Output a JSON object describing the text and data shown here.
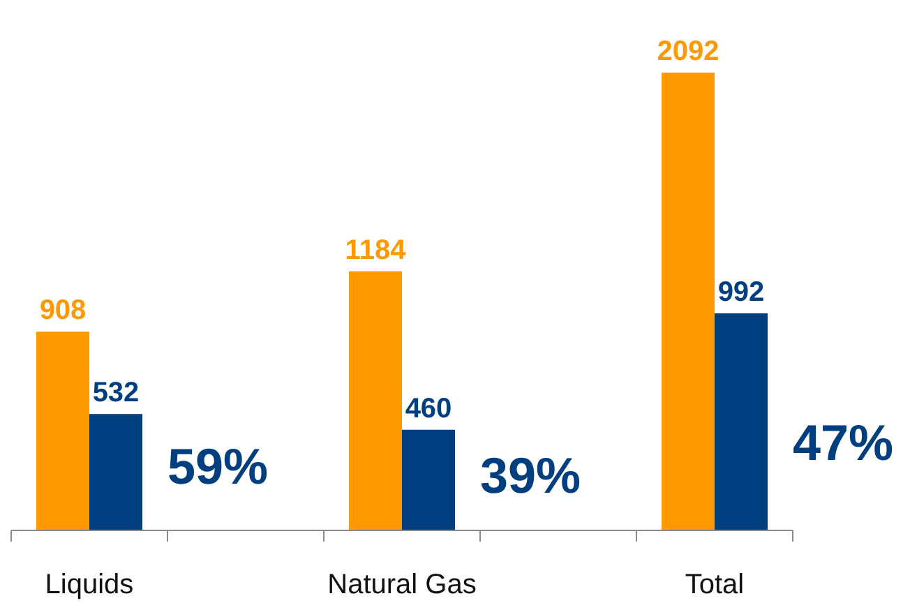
{
  "chart_data": {
    "type": "bar",
    "categories": [
      "Liquids",
      "Natural Gas",
      "Total"
    ],
    "series": [
      {
        "color": "#ff9900",
        "values": [
          908,
          1184,
          2092
        ]
      },
      {
        "color": "#003f7f",
        "values": [
          532,
          460,
          992
        ]
      }
    ],
    "data_labels": true,
    "grid": false,
    "tick_labels": "x",
    "annotations": [
      {
        "text": "59%",
        "x": "Liquids",
        "y": 290
      },
      {
        "text": "39%",
        "x": "Natural Gas",
        "y": 250
      },
      {
        "text": "47%",
        "x": "Total",
        "y": 400
      }
    ]
  }
}
